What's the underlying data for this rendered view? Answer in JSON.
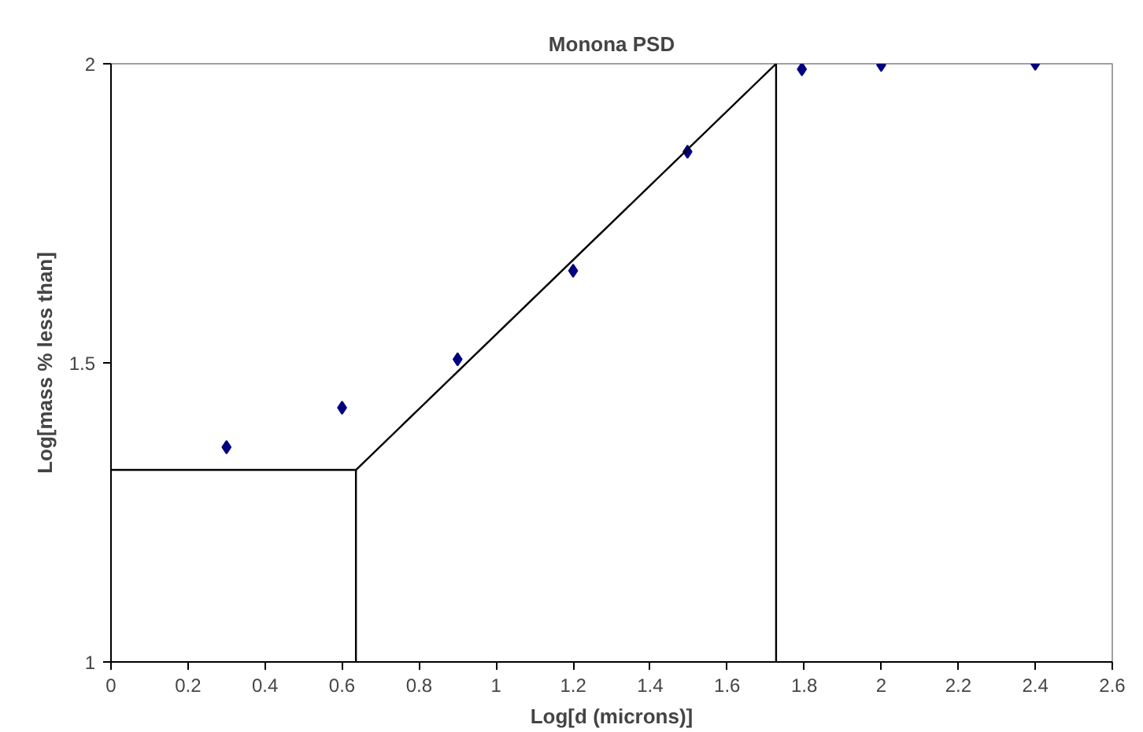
{
  "chart_data": {
    "type": "scatter",
    "title": "Monona PSD",
    "xlabel": "Log[d (microns)]",
    "ylabel": "Log[mass % less than]",
    "xlim": [
      0,
      2.6
    ],
    "xticks": [
      0,
      0.2,
      0.4,
      0.6,
      0.8,
      1,
      1.2,
      1.4,
      1.6,
      1.8,
      2,
      2.2,
      2.4,
      2.6
    ],
    "ylim": [
      1,
      2
    ],
    "yticks": [
      1,
      1.5,
      2
    ],
    "grid": false,
    "series": [
      {
        "marker": "diamond",
        "color": "#000080",
        "x": [
          0.3,
          0.6,
          0.9,
          1.2,
          1.497,
          1.794,
          2.0,
          2.4
        ],
        "values": [
          1.359,
          1.425,
          1.506,
          1.654,
          1.853,
          1.991,
          1.998,
          2.0
        ]
      },
      {
        "type": "line",
        "color": "#000000",
        "x": [
          0,
          0.636,
          1.727
        ],
        "values": [
          1.321,
          1.321,
          2.0
        ]
      },
      {
        "type": "line",
        "color": "#000000",
        "x": [
          0.636,
          0.636
        ],
        "values": [
          1,
          1.321
        ]
      },
      {
        "type": "line",
        "color": "#000000",
        "x": [
          1.727,
          1.727
        ],
        "values": [
          1,
          2.0
        ]
      }
    ]
  }
}
